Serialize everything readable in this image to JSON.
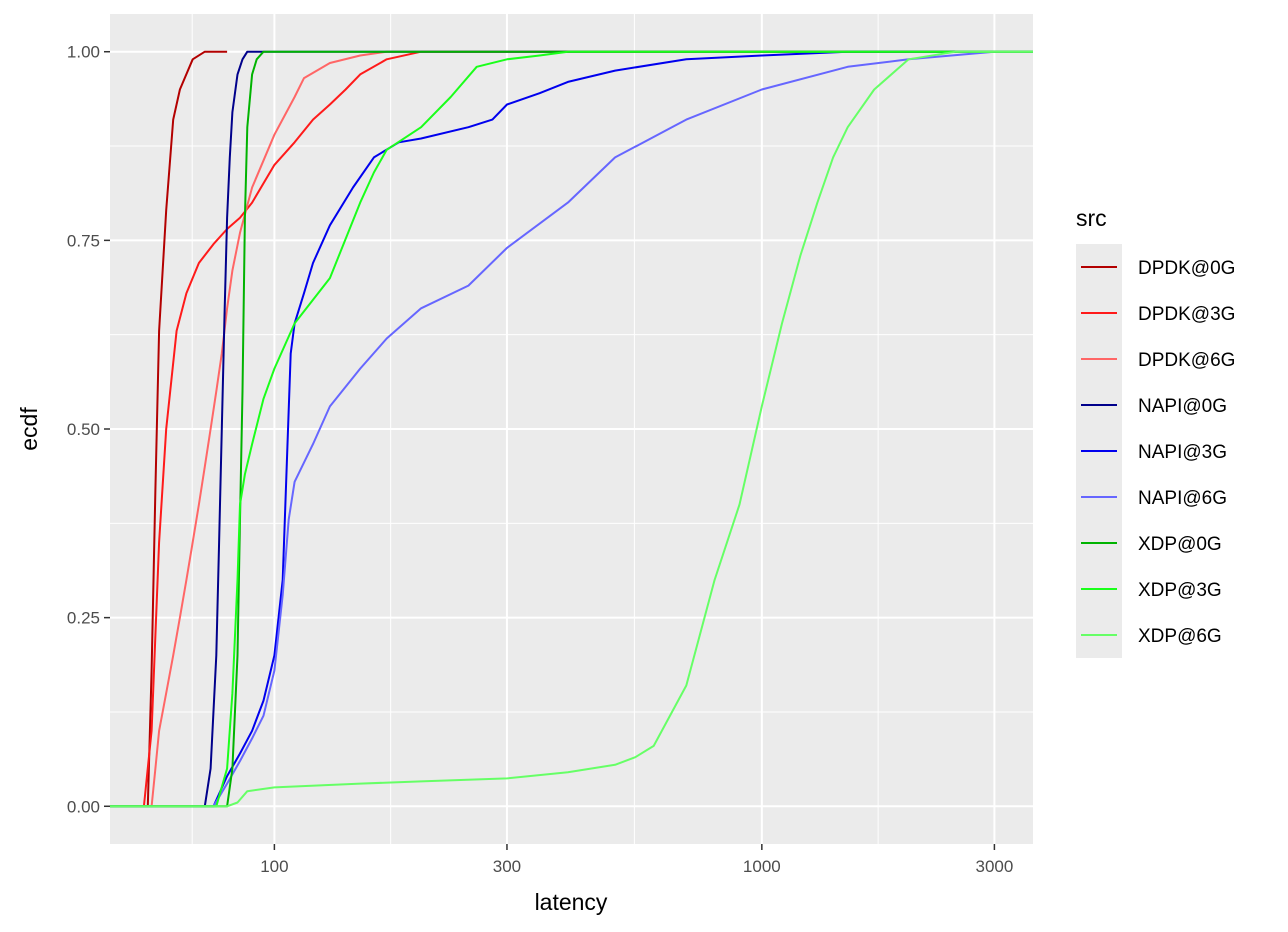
{
  "chart_data": {
    "type": "line",
    "xlabel": "latency",
    "ylabel": "ecdf",
    "x_scale": "log10",
    "xlim": [
      46,
      3600
    ],
    "ylim": [
      -0.05,
      1.05
    ],
    "x_ticks": [
      100,
      300,
      1000,
      3000
    ],
    "x_tick_labels": [
      "100",
      "300",
      "1000",
      "3000"
    ],
    "y_ticks": [
      0,
      0.25,
      0.5,
      0.75,
      1
    ],
    "y_tick_labels": [
      "0.00",
      "0.25",
      "0.50",
      "0.75",
      "1.00"
    ],
    "grid": true,
    "legend_title": "src",
    "legend_position": "right",
    "series": [
      {
        "name": "DPDK@0G",
        "color": "#b30000",
        "x": [
          46,
          55,
          56,
          57,
          58,
          60,
          62,
          64,
          68,
          72,
          80
        ],
        "y": [
          0,
          0,
          0.18,
          0.42,
          0.63,
          0.79,
          0.91,
          0.95,
          0.99,
          1.0,
          1.0
        ]
      },
      {
        "name": "DPDK@3G",
        "color": "#ff1a1a",
        "x": [
          46,
          54,
          56,
          58,
          60,
          63,
          66,
          70,
          75,
          80,
          85,
          90,
          100,
          110,
          120,
          130,
          140,
          150,
          170,
          200,
          3600
        ],
        "y": [
          0,
          0,
          0.1,
          0.35,
          0.5,
          0.63,
          0.68,
          0.72,
          0.745,
          0.765,
          0.78,
          0.8,
          0.85,
          0.88,
          0.91,
          0.93,
          0.95,
          0.97,
          0.99,
          1.0,
          1.0
        ]
      },
      {
        "name": "DPDK@6G",
        "color": "#ff6666",
        "x": [
          46,
          56,
          57,
          58,
          60,
          62,
          64,
          66,
          68,
          70,
          72,
          74,
          76,
          78,
          80,
          82,
          85,
          90,
          100,
          110,
          115,
          130,
          150,
          170,
          200,
          3600
        ],
        "y": [
          0,
          0,
          0.05,
          0.1,
          0.15,
          0.2,
          0.25,
          0.3,
          0.35,
          0.4,
          0.45,
          0.5,
          0.55,
          0.6,
          0.66,
          0.71,
          0.76,
          0.82,
          0.89,
          0.94,
          0.965,
          0.985,
          0.995,
          1.0,
          1.0,
          1.0
        ]
      },
      {
        "name": "NAPI@0G",
        "color": "#00008b",
        "x": [
          46,
          72,
          74,
          76,
          77,
          78,
          79,
          80,
          81,
          82,
          84,
          86,
          88,
          95,
          3600
        ],
        "y": [
          0,
          0,
          0.05,
          0.2,
          0.35,
          0.5,
          0.65,
          0.78,
          0.86,
          0.92,
          0.97,
          0.99,
          1.0,
          1.0,
          1.0
        ]
      },
      {
        "name": "NAPI@3G",
        "color": "#0000ee",
        "x": [
          46,
          75,
          80,
          85,
          90,
          95,
          100,
          104,
          106,
          108,
          110,
          115,
          120,
          130,
          145,
          160,
          180,
          200,
          250,
          280,
          300,
          350,
          400,
          500,
          700,
          1000,
          1500,
          3600
        ],
        "y": [
          0,
          0,
          0.04,
          0.07,
          0.1,
          0.14,
          0.2,
          0.3,
          0.45,
          0.6,
          0.64,
          0.68,
          0.72,
          0.77,
          0.82,
          0.86,
          0.88,
          0.885,
          0.9,
          0.91,
          0.93,
          0.945,
          0.96,
          0.975,
          0.99,
          0.995,
          1.0,
          1.0
        ]
      },
      {
        "name": "NAPI@6G",
        "color": "#6666ff",
        "x": [
          46,
          75,
          80,
          85,
          90,
          95,
          100,
          104,
          107,
          110,
          120,
          130,
          150,
          170,
          200,
          250,
          300,
          400,
          500,
          700,
          1000,
          1500,
          2000,
          3000,
          3600
        ],
        "y": [
          0,
          0,
          0.03,
          0.06,
          0.09,
          0.12,
          0.18,
          0.28,
          0.38,
          0.43,
          0.48,
          0.53,
          0.58,
          0.62,
          0.66,
          0.69,
          0.74,
          0.8,
          0.86,
          0.91,
          0.95,
          0.98,
          0.99,
          1.0,
          1.0
        ]
      },
      {
        "name": "XDP@0G",
        "color": "#00b300",
        "x": [
          46,
          80,
          82,
          84,
          85,
          86,
          87,
          88,
          90,
          92,
          95,
          3600
        ],
        "y": [
          0,
          0,
          0.05,
          0.2,
          0.38,
          0.55,
          0.78,
          0.9,
          0.97,
          0.99,
          1.0,
          1.0
        ]
      },
      {
        "name": "XDP@3G",
        "color": "#1aff1a",
        "x": [
          46,
          76,
          80,
          82,
          84,
          85,
          87,
          90,
          95,
          100,
          110,
          130,
          150,
          160,
          170,
          200,
          230,
          260,
          300,
          350,
          400,
          500,
          3600
        ],
        "y": [
          0,
          0,
          0.05,
          0.15,
          0.3,
          0.4,
          0.44,
          0.48,
          0.54,
          0.58,
          0.64,
          0.7,
          0.8,
          0.84,
          0.87,
          0.9,
          0.94,
          0.98,
          0.99,
          0.995,
          1.0,
          1.0,
          1.0
        ]
      },
      {
        "name": "XDP@6G",
        "color": "#66ff66",
        "x": [
          46,
          80,
          84,
          88,
          100,
          150,
          200,
          300,
          400,
          500,
          550,
          600,
          700,
          800,
          900,
          1000,
          1100,
          1200,
          1300,
          1400,
          1500,
          1700,
          2000,
          2500,
          3600
        ],
        "y": [
          0,
          0,
          0.005,
          0.02,
          0.025,
          0.03,
          0.033,
          0.037,
          0.045,
          0.055,
          0.065,
          0.08,
          0.16,
          0.3,
          0.4,
          0.53,
          0.64,
          0.73,
          0.8,
          0.86,
          0.9,
          0.95,
          0.99,
          1.0,
          1.0
        ]
      }
    ]
  }
}
